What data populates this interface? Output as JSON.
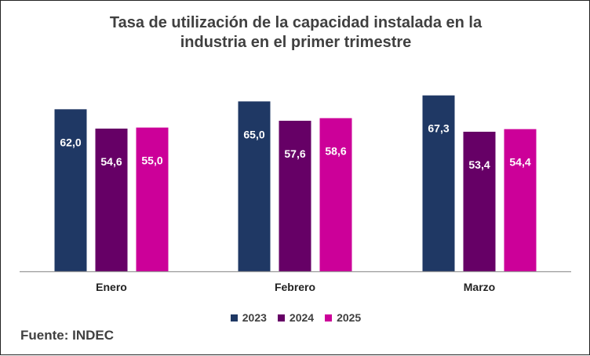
{
  "chart_data": {
    "type": "bar",
    "title": "Tasa de utilización de la capacidad instalada en la industria en el primer trimestre",
    "title_lines": [
      "Tasa de utilización de la capacidad instalada en la",
      "industria en el primer trimestre"
    ],
    "categories": [
      "Enero",
      "Febrero",
      "Marzo"
    ],
    "series": [
      {
        "name": "2023",
        "color": "#1f3864",
        "values": [
          62.0,
          65.0,
          67.3
        ],
        "labels": [
          "62,0",
          "65,0",
          "67,3"
        ]
      },
      {
        "name": "2024",
        "color": "#660066",
        "values": [
          54.6,
          57.6,
          53.4
        ],
        "labels": [
          "54,6",
          "57,6",
          "53,4"
        ]
      },
      {
        "name": "2025",
        "color": "#cc0099",
        "values": [
          55.0,
          58.6,
          54.4
        ],
        "labels": [
          "55,0",
          "58,6",
          "54,4"
        ]
      }
    ],
    "xlabel": "",
    "ylabel": "",
    "ylim": [
      0,
      72
    ],
    "grid": false,
    "legend_position": "bottom",
    "data_label_color": "#ffffff"
  },
  "source": "Fuente: INDEC"
}
